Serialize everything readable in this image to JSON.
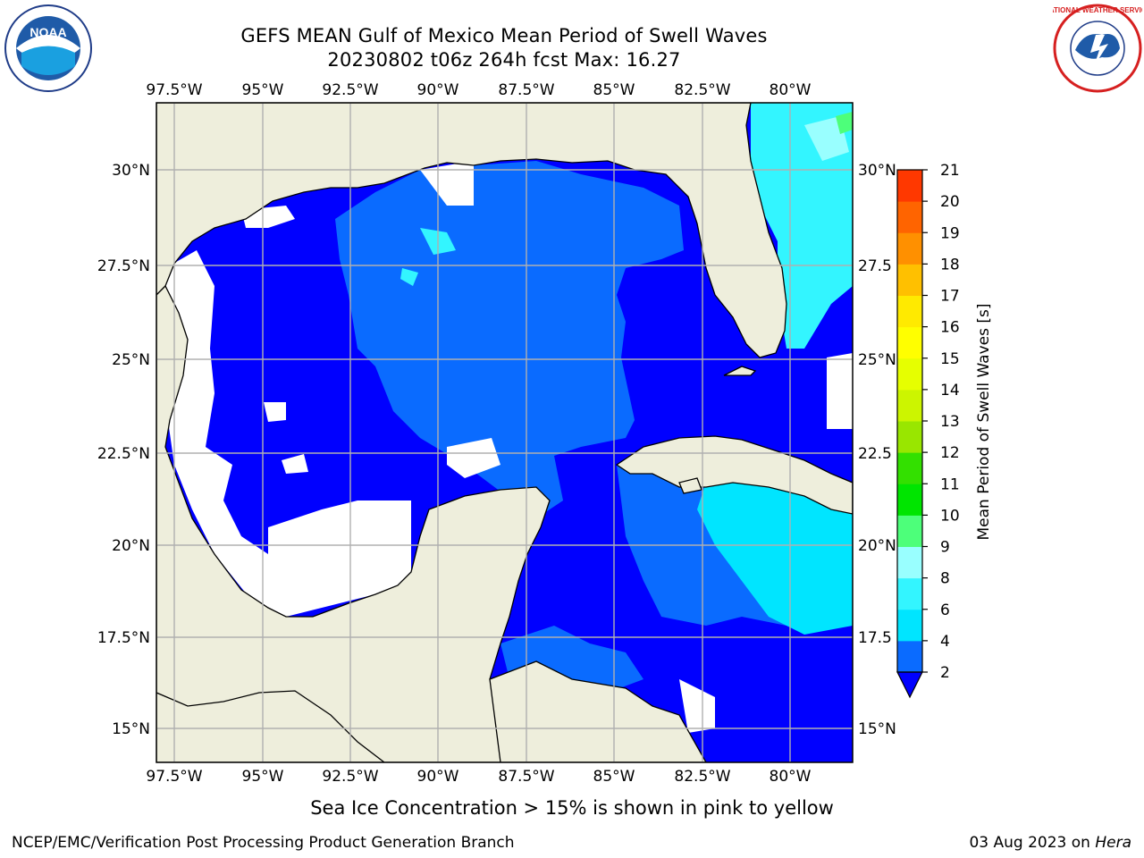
{
  "title": {
    "line1": "GEFS MEAN Gulf of Mexico Mean Period of Swell Waves",
    "line2": "20230802 t06z 264h fcst   Max: 16.27"
  },
  "map": {
    "lon_ticks": [
      "97.5°W",
      "95°W",
      "92.5°W",
      "90°W",
      "87.5°W",
      "85°W",
      "82.5°W",
      "80°W"
    ],
    "lat_ticks_left": [
      "30°N",
      "27.5°N",
      "25°N",
      "22.5°N",
      "20°N",
      "17.5°N",
      "15°N"
    ],
    "lat_ticks_right": [
      "30°N",
      "27.5",
      "25°N",
      "22.5",
      "20°N",
      "17.5",
      "15°N"
    ],
    "land_color": "#eeeedc",
    "ocean_color": "#0000ff"
  },
  "colorbar": {
    "label": "Mean Period of Swell Waves [s]",
    "ticks": [
      "2",
      "4",
      "6",
      "8",
      "9",
      "10",
      "11",
      "12",
      "13",
      "14",
      "15",
      "16",
      "17",
      "18",
      "19",
      "20",
      "21"
    ],
    "colors": [
      "#0a6bff",
      "#00e5ff",
      "#33f5ff",
      "#99ffff",
      "#4dff7a",
      "#00e500",
      "#33e000",
      "#99e600",
      "#ccf500",
      "#e6ff00",
      "#ffff00",
      "#ffea00",
      "#ffc000",
      "#ff9000",
      "#ff6400",
      "#ff3800",
      "#ff0000"
    ],
    "under_color": "#0000ff"
  },
  "note": "Sea Ice Concentration > 15% is shown in pink to yellow",
  "footer": {
    "left": "NCEP/EMC/Verification Post Processing Product Generation Branch",
    "date": "03 Aug 2023 on ",
    "host": "Hera"
  },
  "logos": {
    "left_icon": "noaa-logo",
    "left_text": "NOAA",
    "right_icon": "nws-logo",
    "right_text": "NATIONAL WEATHER SERVICE"
  }
}
